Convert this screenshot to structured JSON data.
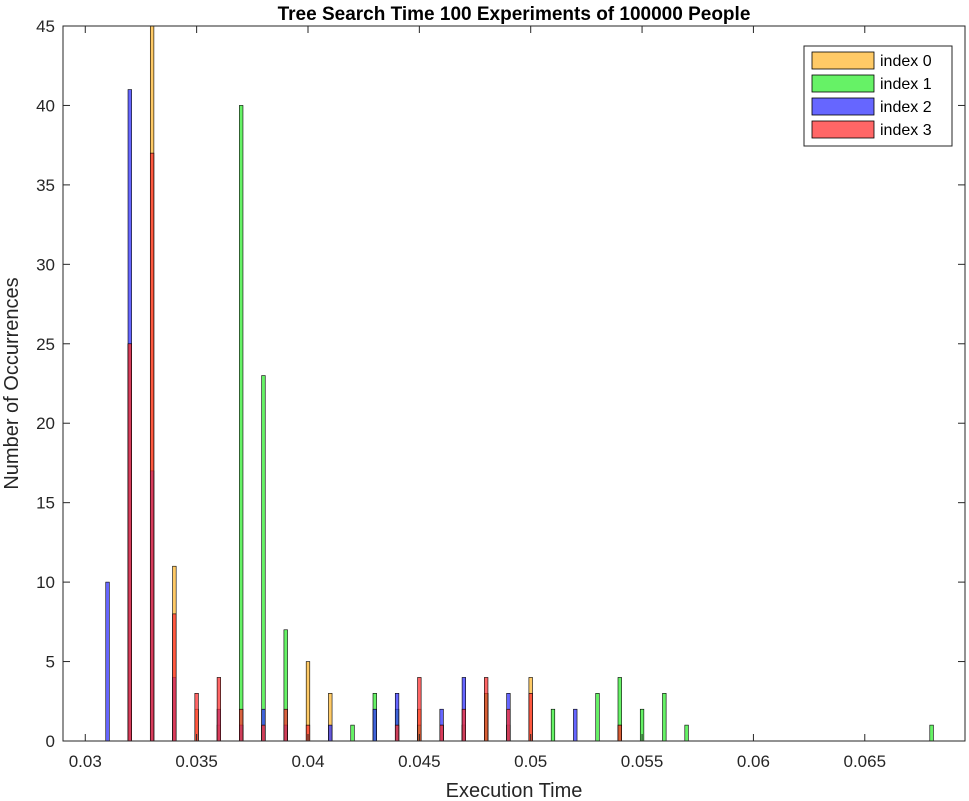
{
  "chart_data": {
    "type": "bar",
    "title": "Tree Search Time 100 Experiments of 100000 People",
    "xlabel": "Execution Time",
    "ylabel": "Number of Occurrences",
    "xlim": [
      0.029,
      0.0695
    ],
    "ylim": [
      0,
      45
    ],
    "xticks": [
      0.03,
      0.035,
      0.04,
      0.045,
      0.05,
      0.055,
      0.06,
      0.065
    ],
    "xtick_labels": [
      "0.03",
      "0.035",
      "0.04",
      "0.045",
      "0.05",
      "0.055",
      "0.06",
      "0.065"
    ],
    "yticks": [
      0,
      5,
      10,
      15,
      20,
      25,
      30,
      35,
      40,
      45
    ],
    "ytick_labels": [
      "0",
      "5",
      "10",
      "15",
      "20",
      "25",
      "30",
      "35",
      "40",
      "45"
    ],
    "grid": false,
    "legend_position": "top-right",
    "series": [
      {
        "name": "index 0",
        "color": "#FFB833",
        "points": [
          [
            0.032,
            25
          ],
          [
            0.033,
            45
          ],
          [
            0.034,
            11
          ],
          [
            0.035,
            2
          ],
          [
            0.036,
            1
          ],
          [
            0.037,
            1
          ],
          [
            0.038,
            1
          ],
          [
            0.039,
            1
          ],
          [
            0.04,
            5
          ],
          [
            0.041,
            3
          ],
          [
            0.045,
            2
          ],
          [
            0.046,
            1
          ],
          [
            0.047,
            1
          ],
          [
            0.048,
            3
          ],
          [
            0.049,
            1
          ],
          [
            0.05,
            4
          ],
          [
            0.054,
            1
          ]
        ]
      },
      {
        "name": "index 1",
        "color": "#33EE33",
        "points": [
          [
            0.037,
            40
          ],
          [
            0.038,
            23
          ],
          [
            0.039,
            7
          ],
          [
            0.042,
            1
          ],
          [
            0.043,
            3
          ],
          [
            0.044,
            2
          ],
          [
            0.045,
            1
          ],
          [
            0.047,
            1
          ],
          [
            0.048,
            3
          ],
          [
            0.049,
            1
          ],
          [
            0.051,
            2
          ],
          [
            0.053,
            3
          ],
          [
            0.054,
            4
          ],
          [
            0.055,
            2
          ],
          [
            0.056,
            3
          ],
          [
            0.057,
            1
          ],
          [
            0.068,
            1
          ]
        ]
      },
      {
        "name": "index 2",
        "color": "#3333FF",
        "points": [
          [
            0.031,
            10
          ],
          [
            0.032,
            41
          ],
          [
            0.033,
            17
          ],
          [
            0.034,
            4
          ],
          [
            0.036,
            2
          ],
          [
            0.037,
            1
          ],
          [
            0.038,
            2
          ],
          [
            0.039,
            1
          ],
          [
            0.041,
            1
          ],
          [
            0.043,
            2
          ],
          [
            0.044,
            3
          ],
          [
            0.046,
            2
          ],
          [
            0.047,
            4
          ],
          [
            0.049,
            3
          ],
          [
            0.052,
            2
          ]
        ]
      },
      {
        "name": "index 3",
        "color": "#FF3333",
        "points": [
          [
            0.032,
            25
          ],
          [
            0.033,
            37
          ],
          [
            0.034,
            8
          ],
          [
            0.035,
            3
          ],
          [
            0.036,
            4
          ],
          [
            0.037,
            2
          ],
          [
            0.038,
            1
          ],
          [
            0.039,
            2
          ],
          [
            0.04,
            1
          ],
          [
            0.044,
            1
          ],
          [
            0.045,
            4
          ],
          [
            0.046,
            1
          ],
          [
            0.047,
            2
          ],
          [
            0.048,
            4
          ],
          [
            0.049,
            2
          ],
          [
            0.05,
            3
          ],
          [
            0.054,
            1
          ]
        ]
      }
    ]
  }
}
